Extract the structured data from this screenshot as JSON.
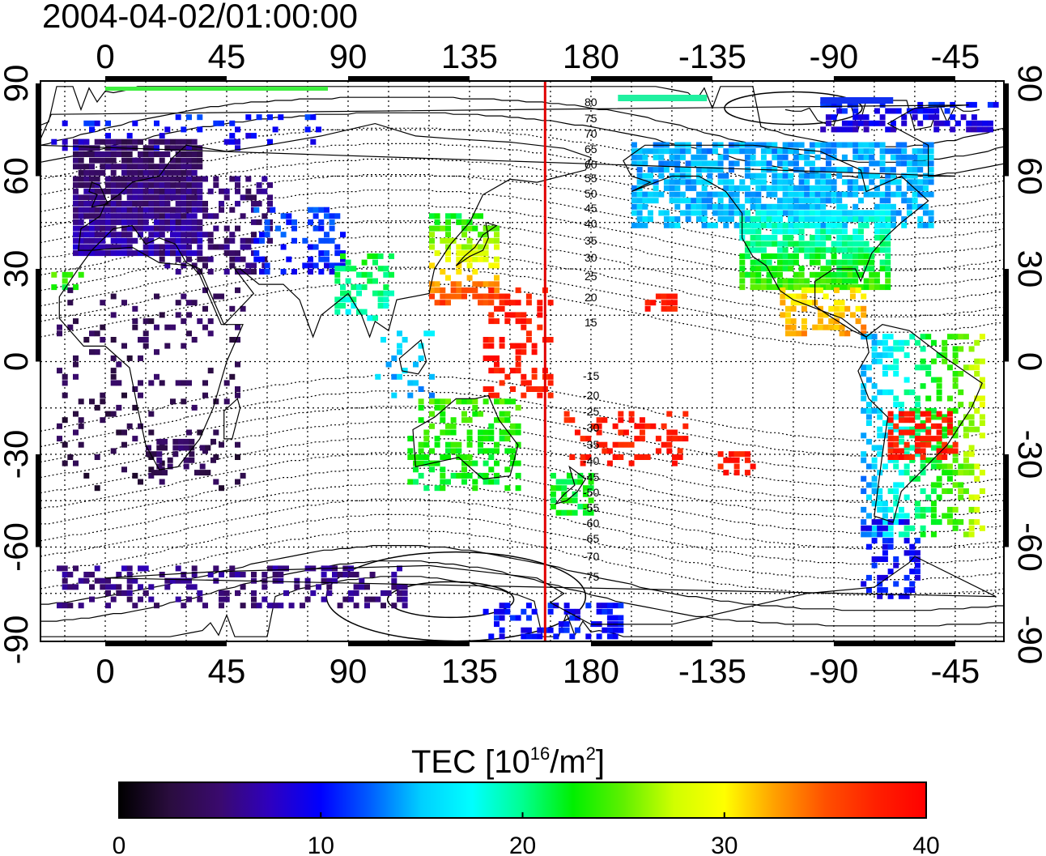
{
  "timestamp": "2004-04-02/01:00:00",
  "colorbar": {
    "title_prefix": "TEC  [10",
    "title_sup1": "16",
    "title_mid": "/m",
    "title_sup2": "2",
    "title_suffix": "]",
    "range": [
      0,
      40
    ],
    "ticks": [
      "0",
      "10",
      "20",
      "30",
      "40"
    ],
    "colors": [
      "#000000",
      "#2a0d3e",
      "#3a0a6e",
      "#2e00c0",
      "#0000ff",
      "#0060ff",
      "#00d0ff",
      "#00ffff",
      "#00ff90",
      "#00f000",
      "#60f000",
      "#d0ff00",
      "#ffff00",
      "#ffa000",
      "#ff5000",
      "#ff2000",
      "#ff0000"
    ]
  },
  "map": {
    "x_axis_labels": [
      "0",
      "45",
      "90",
      "135",
      "180",
      "-135",
      "-90",
      "-45"
    ],
    "y_axis_labels_left": [
      "90",
      "60",
      "30",
      "0",
      "-30",
      "-60",
      "-90"
    ],
    "y_axis_labels_right": [
      "90",
      "60",
      "30",
      "0",
      "-30",
      "-60",
      "-90"
    ],
    "contour_labels": [
      "80",
      "75",
      "70",
      "65",
      "60",
      "55",
      "50",
      "45",
      "40",
      "35",
      "30",
      "25",
      "20",
      "15",
      "-15",
      "-20",
      "-25",
      "-30",
      "-35",
      "-40",
      "-45",
      "-50",
      "-55",
      "-60",
      "-65",
      "-70",
      "-75"
    ],
    "meridian_marker_lon": 163,
    "grid": "dotted every 15 degrees",
    "coastlines": "world"
  }
}
